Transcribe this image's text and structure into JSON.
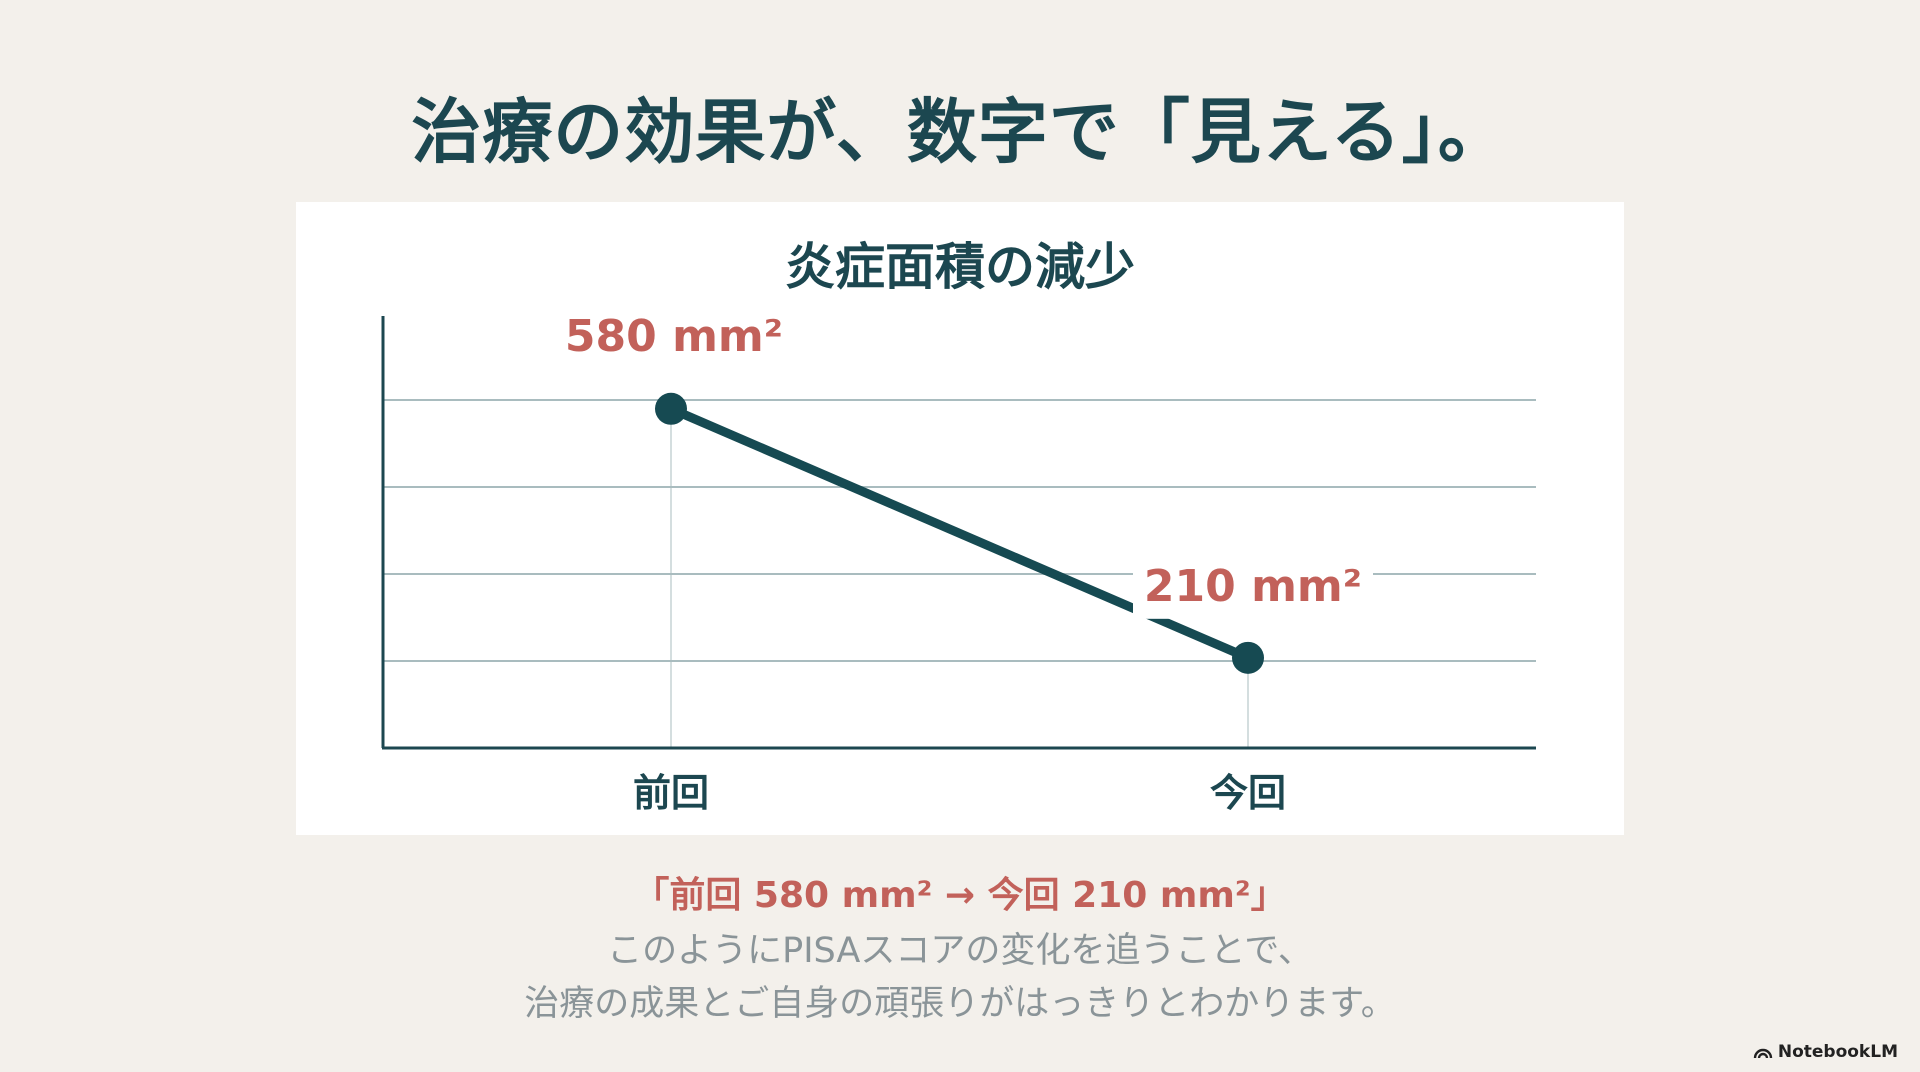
{
  "title": "治療の効果が、数字で「見える」。",
  "chart_data": {
    "type": "line",
    "title": "炎症面積の減少",
    "categories": [
      "前回",
      "今回"
    ],
    "values": [
      580,
      210
    ],
    "unit": "mm²",
    "data_labels": [
      "580 mm²",
      "210 mm²"
    ],
    "grid": true,
    "colors": {
      "line": "#164a52",
      "label": "#c2615a",
      "grid": "#a9bcbf"
    }
  },
  "caption": {
    "highlight": "「前回 580 mm² → 今回 210 mm²」",
    "line1": "このようにPISAスコアの変化を追うことで、",
    "line2": "治療の成果とご自身の頑張りがはっきりとわかります。"
  },
  "branding": {
    "name": "NotebookLM",
    "icon": "notebooklm-logo-icon"
  }
}
